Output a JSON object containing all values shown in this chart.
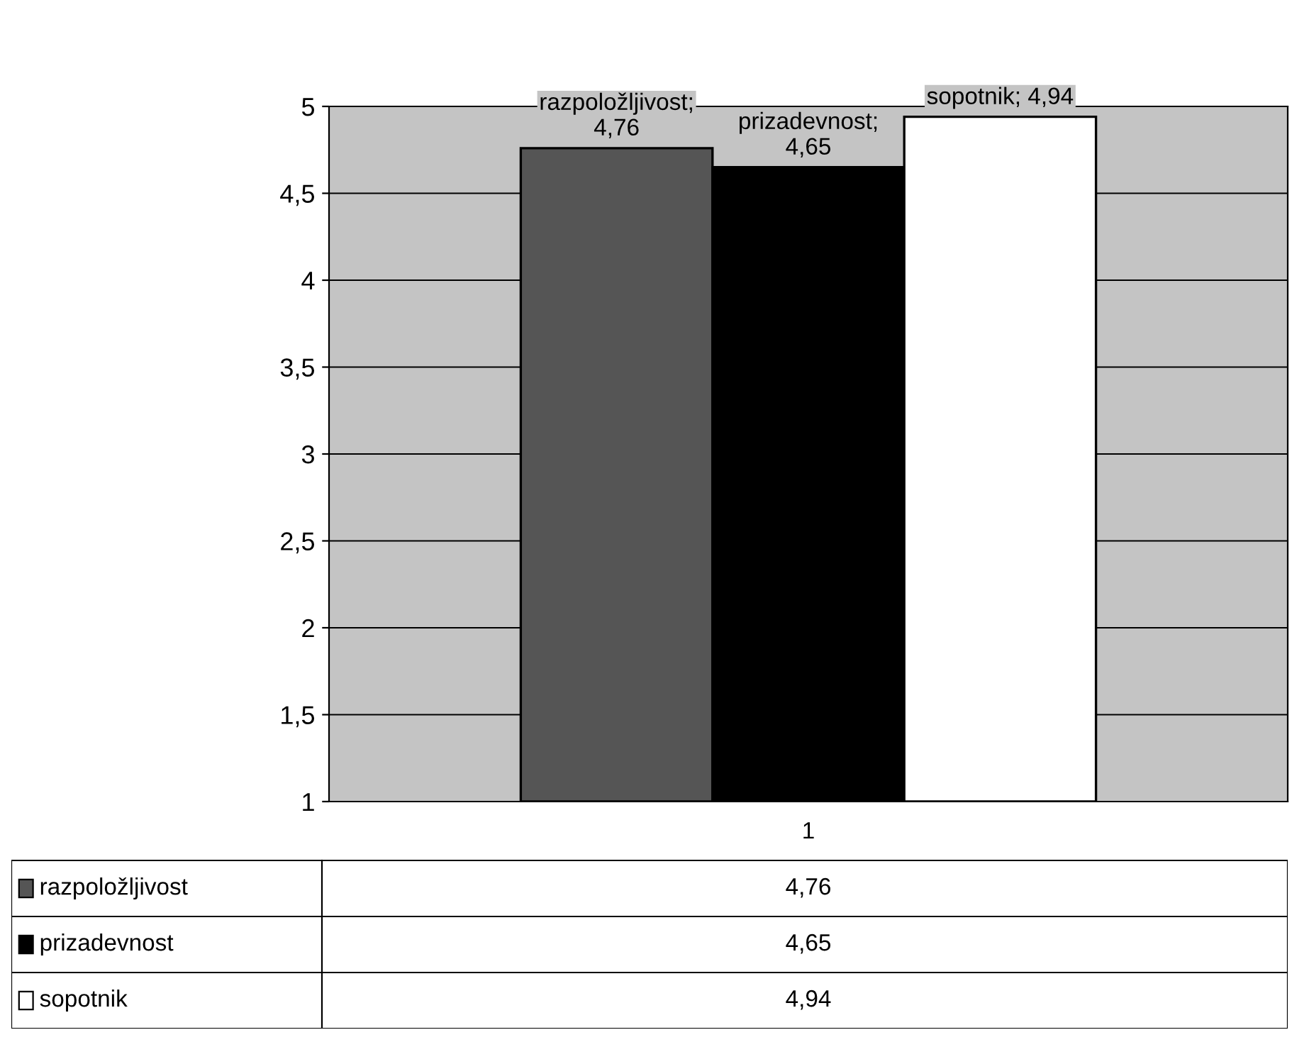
{
  "chart_data": {
    "type": "bar",
    "categories": [
      "1"
    ],
    "series": [
      {
        "name": "razpoložljivost",
        "color": "#555555",
        "values": [
          4.76
        ],
        "value_labels": [
          "razpoložljivost;\n4,76"
        ]
      },
      {
        "name": "prizadevnost",
        "color": "#000000",
        "values": [
          4.65
        ],
        "value_labels": [
          "prizadevnost;\n4,65"
        ]
      },
      {
        "name": "sopotnik",
        "color": "#ffffff",
        "values": [
          4.94
        ],
        "value_labels": [
          "sopotnik; 4,94"
        ]
      }
    ],
    "ylim": [
      1,
      5
    ],
    "yticks": [
      1,
      {
        "value": 1.5,
        "label": "1,5"
      },
      2,
      {
        "value": 2.5,
        "label": "2,5"
      },
      3,
      {
        "value": 3.5,
        "label": "3,5"
      },
      4,
      {
        "value": 4.5,
        "label": "4,5"
      },
      5
    ],
    "grid": "y",
    "data_labels": true,
    "legend": "bottom",
    "annotations": [
      "4,76",
      "4,65",
      "4,94"
    ]
  }
}
